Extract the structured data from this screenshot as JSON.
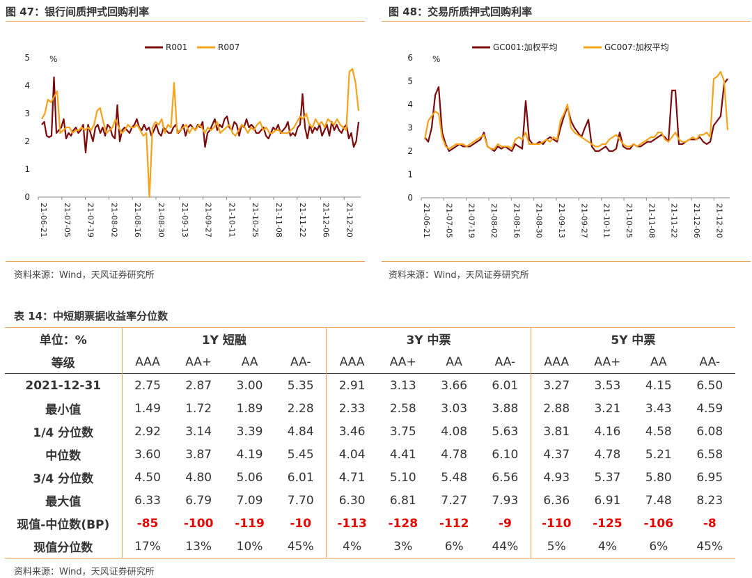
{
  "figures": [
    {
      "title": "图 47：银行间质押式回购利率",
      "source": "资料来源：Wind，天风证券研究所",
      "unit": "%",
      "yticks": [
        "0",
        "1",
        "2",
        "3",
        "4",
        "5"
      ],
      "xticks": [
        "21-06-21",
        "21-07-05",
        "21-07-19",
        "21-08-02",
        "21-08-16",
        "21-08-30",
        "21-09-13",
        "21-09-27",
        "21-10-11",
        "21-10-25",
        "21-11-08",
        "21-11-22",
        "21-12-06",
        "21-12-20"
      ],
      "legend": [
        "R001",
        "R007"
      ],
      "colors": {
        "series1": "#7b0a0a",
        "series2": "#f7a21b"
      }
    },
    {
      "title": "图 48：交易所质押式回购利率",
      "source": "资料来源：Wind，天风证券研究所",
      "unit": "%",
      "yticks": [
        "0",
        "1",
        "2",
        "3",
        "4",
        "5",
        "6"
      ],
      "xticks": [
        "21-06-21",
        "21-07-05",
        "21-07-19",
        "21-08-02",
        "21-08-16",
        "21-08-30",
        "21-09-13",
        "21-09-27",
        "21-10-11",
        "21-10-25",
        "21-11-08",
        "21-11-22",
        "21-12-06",
        "21-12-20"
      ],
      "legend": [
        "GC001:加权平均",
        "GC007:加权平均"
      ],
      "colors": {
        "series1": "#7b0a0a",
        "series2": "#f7a21b"
      }
    }
  ],
  "chart_data": [
    {
      "type": "line",
      "title": "图 47：银行间质押式回购利率",
      "ylabel": "%",
      "ylim": [
        0,
        5
      ],
      "x_range": [
        "21-06-21",
        "21-12-31"
      ],
      "series": [
        {
          "name": "R001",
          "values": [
            2.6,
            2.7,
            2.2,
            2.15,
            2.2,
            4.3,
            2.3,
            2.4,
            2.5,
            2.8,
            2.1,
            2.3,
            2.2,
            2.4,
            2.5,
            2.3,
            2.4,
            2.6,
            1.6,
            2.6,
            2.3,
            2.0,
            2.5,
            2.6,
            2.3,
            2.5,
            2.2,
            2.6,
            2.5,
            2.2,
            2.1,
            3.3,
            2.0,
            2.4,
            2.5,
            2.4,
            2.3,
            2.5,
            2.6,
            2.8,
            2.5,
            2.4,
            2.6,
            2.4,
            2.5,
            2.2,
            2.4,
            2.6,
            2.3,
            2.2,
            2.5,
            2.4,
            2.3,
            2.3,
            2.5,
            2.6,
            2.3,
            2.4,
            2.6,
            2.2,
            2.5,
            2.6,
            2.5,
            2.4,
            2.6,
            2.5,
            2.7,
            1.8,
            2.3,
            2.4,
            2.6,
            2.8,
            2.4,
            2.6,
            2.5,
            2.8,
            2.9,
            2.5,
            2.4,
            2.7,
            2.6,
            2.2,
            2.6,
            2.5,
            2.8,
            2.5,
            2.6,
            2.5,
            2.3,
            2.3,
            2.4,
            2.5,
            2.2,
            2.1,
            2.3,
            2.5,
            2.4,
            2.6,
            2.3,
            2.4,
            2.5,
            2.7,
            2.2,
            2.3,
            2.2,
            2.5,
            2.6,
            3.7,
            2.5,
            2.1,
            2.6,
            2.3,
            2.5,
            2.4,
            2.6,
            2.2,
            2.4,
            2.6,
            2.2,
            2.7,
            2.4,
            2.6,
            2.4,
            2.3,
            2.5,
            2.6,
            2.1,
            2.3,
            1.8,
            2.0,
            2.7
          ]
        },
        {
          "name": "R007",
          "values": [
            2.8,
            3.0,
            3.5,
            3.4,
            3.6,
            3.8,
            2.3,
            2.4,
            2.5,
            2.5,
            2.3,
            2.4,
            2.4,
            2.5,
            2.4,
            2.5,
            2.4,
            2.6,
            3.1,
            3.2,
            2.7,
            2.3,
            2.4,
            2.5,
            2.8,
            2.5,
            2.3,
            2.4,
            2.6,
            2.5,
            2.5,
            2.6,
            2.4,
            2.2,
            2.3,
            0.0,
            2.5,
            2.7,
            2.6,
            2.8,
            2.3,
            2.6,
            2.5,
            4.1,
            2.3,
            2.4,
            2.5,
            2.6,
            2.3,
            2.5,
            2.4,
            2.6,
            2.5,
            2.3,
            2.5,
            2.4,
            2.5,
            2.7,
            2.3,
            2.4,
            2.5,
            2.6,
            2.3,
            2.2,
            2.4,
            2.6,
            2.5,
            2.3,
            2.5,
            2.4,
            2.6,
            2.7,
            2.4,
            2.5,
            2.3,
            2.3,
            2.4,
            2.4,
            2.3,
            2.3,
            2.3,
            2.4,
            2.5,
            2.7,
            2.9,
            2.8,
            3.0,
            2.6,
            2.5,
            2.8,
            2.6,
            2.7,
            2.5,
            2.8,
            2.7,
            2.6,
            2.8,
            2.6,
            2.5,
            2.4,
            4.5,
            4.6,
            4.1,
            3.1
          ]
        }
      ]
    },
    {
      "type": "line",
      "title": "图 48：交易所质押式回购利率",
      "ylabel": "%",
      "ylim": [
        0,
        6
      ],
      "x_range": [
        "21-06-21",
        "21-12-31"
      ],
      "series": [
        {
          "name": "GC001:加权平均",
          "values": [
            2.6,
            2.4,
            3.0,
            4.4,
            4.75,
            2.8,
            2.3,
            2.0,
            2.1,
            2.2,
            2.3,
            2.2,
            2.2,
            2.2,
            2.3,
            2.4,
            2.5,
            2.8,
            2.2,
            2.1,
            2.0,
            2.2,
            2.1,
            2.2,
            2.1,
            2.0,
            2.3,
            2.2,
            2.1,
            4.15,
            2.5,
            2.3,
            2.3,
            2.4,
            2.3,
            2.5,
            2.6,
            2.5,
            2.4,
            3.0,
            3.5,
            3.9,
            3.3,
            3.0,
            2.8,
            2.6,
            3.0,
            3.35,
            2.2,
            2.0,
            2.0,
            2.1,
            2.2,
            2.0,
            2.0,
            2.1,
            2.8,
            2.2,
            2.1,
            2.1,
            2.3,
            2.2,
            2.2,
            2.3,
            2.4,
            2.4,
            2.5,
            2.6,
            2.7,
            2.6,
            2.4,
            4.6,
            4.6,
            2.3,
            2.3,
            2.4,
            2.5,
            2.5,
            2.5,
            2.6,
            2.4,
            2.3,
            2.4,
            3.1,
            3.3,
            3.5,
            4.9,
            5.1
          ]
        },
        {
          "name": "GC007:加权平均",
          "values": [
            2.5,
            3.3,
            3.5,
            3.7,
            3.6,
            2.6,
            2.2,
            2.1,
            2.2,
            2.3,
            2.3,
            2.3,
            2.2,
            2.3,
            2.4,
            2.5,
            2.6,
            2.7,
            2.2,
            2.1,
            2.1,
            2.3,
            2.2,
            2.2,
            2.2,
            2.1,
            2.5,
            2.6,
            2.5,
            2.8,
            2.3,
            2.3,
            2.3,
            2.3,
            2.4,
            2.5,
            2.4,
            2.6,
            2.5,
            3.3,
            3.6,
            4.0,
            3.0,
            2.8,
            2.7,
            2.6,
            2.5,
            2.4,
            2.3,
            2.2,
            2.2,
            2.3,
            2.3,
            2.5,
            2.6,
            2.7,
            2.5,
            2.3,
            2.2,
            2.2,
            2.3,
            2.2,
            2.3,
            2.4,
            2.5,
            2.6,
            2.6,
            2.8,
            2.8,
            2.5,
            2.4,
            2.6,
            2.8,
            2.5,
            2.4,
            2.4,
            2.5,
            2.6,
            2.5,
            2.7,
            2.7,
            2.8,
            2.6,
            5.1,
            5.2,
            5.4,
            5.0,
            2.9
          ]
        }
      ]
    },
    {
      "type": "table",
      "title": "表 14：中短期票据收益率分位数",
      "unit_label": "单位：%",
      "grade_label": "等级",
      "groups": [
        "1Y 短融",
        "3Y 中票",
        "5Y 中票"
      ],
      "grades": [
        "AAA",
        "AA+",
        "AA",
        "AA-",
        "AAA",
        "AA+",
        "AA",
        "AA-",
        "AAA",
        "AA+",
        "AA",
        "AA-"
      ],
      "rows": [
        {
          "label": "2021-12-31",
          "cells": [
            "2.75",
            "2.87",
            "3.00",
            "5.35",
            "2.91",
            "3.13",
            "3.66",
            "6.01",
            "3.27",
            "3.53",
            "4.15",
            "6.50"
          ]
        },
        {
          "label": "最小值",
          "cells": [
            "1.49",
            "1.72",
            "1.89",
            "2.28",
            "2.33",
            "2.58",
            "3.03",
            "3.88",
            "2.88",
            "3.21",
            "3.43",
            "4.59"
          ]
        },
        {
          "label": "1/4 分位数",
          "cells": [
            "2.92",
            "3.14",
            "3.39",
            "4.84",
            "3.46",
            "3.75",
            "4.08",
            "5.63",
            "3.81",
            "4.16",
            "4.58",
            "6.08"
          ]
        },
        {
          "label": "中位数",
          "cells": [
            "3.60",
            "3.87",
            "4.19",
            "5.45",
            "4.04",
            "4.41",
            "4.78",
            "6.10",
            "4.37",
            "4.78",
            "5.21",
            "6.58"
          ]
        },
        {
          "label": "3/4 分位数",
          "cells": [
            "4.50",
            "4.80",
            "5.06",
            "6.01",
            "4.71",
            "5.10",
            "5.48",
            "6.56",
            "4.93",
            "5.37",
            "5.80",
            "6.95"
          ]
        },
        {
          "label": "最大值",
          "cells": [
            "6.33",
            "6.79",
            "7.09",
            "7.70",
            "6.30",
            "6.81",
            "7.27",
            "7.93",
            "6.36",
            "6.91",
            "7.48",
            "8.23"
          ]
        },
        {
          "label": "现值-中位数(BP)",
          "cells": [
            "-85",
            "-100",
            "-119",
            "-10",
            "-113",
            "-128",
            "-112",
            "-9",
            "-110",
            "-125",
            "-106",
            "-8"
          ],
          "negative": true
        },
        {
          "label": "现值分位数",
          "cells": [
            "17%",
            "13%",
            "10%",
            "45%",
            "4%",
            "3%",
            "6%",
            "44%",
            "5%",
            "4%",
            "6%",
            "45%"
          ]
        }
      ]
    }
  ],
  "table_source": "资料来源：Wind，天风证券研究所"
}
